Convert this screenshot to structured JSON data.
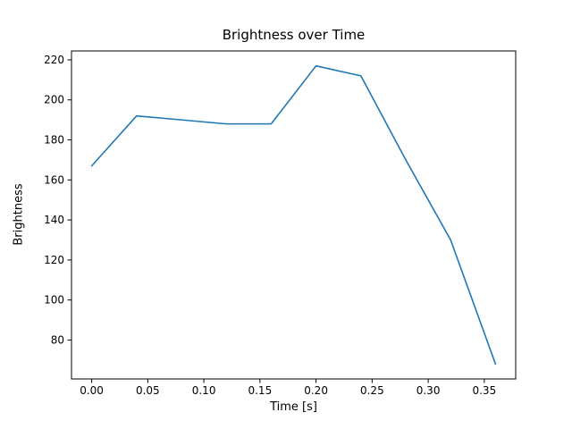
{
  "figure": {
    "title": "Brightness over Time"
  },
  "chart_data": {
    "type": "line",
    "title": "Brightness over Time",
    "xlabel": "Time [s]",
    "ylabel": "Brightness",
    "x": [
      0.0,
      0.04,
      0.08,
      0.12,
      0.16,
      0.2,
      0.24,
      0.28,
      0.32,
      0.36
    ],
    "y": [
      167,
      192,
      190,
      188,
      188,
      217,
      212,
      170,
      130,
      68
    ],
    "xticks": [
      0.0,
      0.05,
      0.1,
      0.15,
      0.2,
      0.25,
      0.3,
      0.35
    ],
    "yticks": [
      80,
      100,
      120,
      140,
      160,
      180,
      200,
      220
    ],
    "xlim": [
      -0.018,
      0.378
    ],
    "ylim": [
      60.55,
      224.45
    ],
    "line_color": "#1f77b4",
    "line_width": 1.6,
    "spine_color": "#000000",
    "background": "#ffffff",
    "grid": false,
    "legend": null
  }
}
